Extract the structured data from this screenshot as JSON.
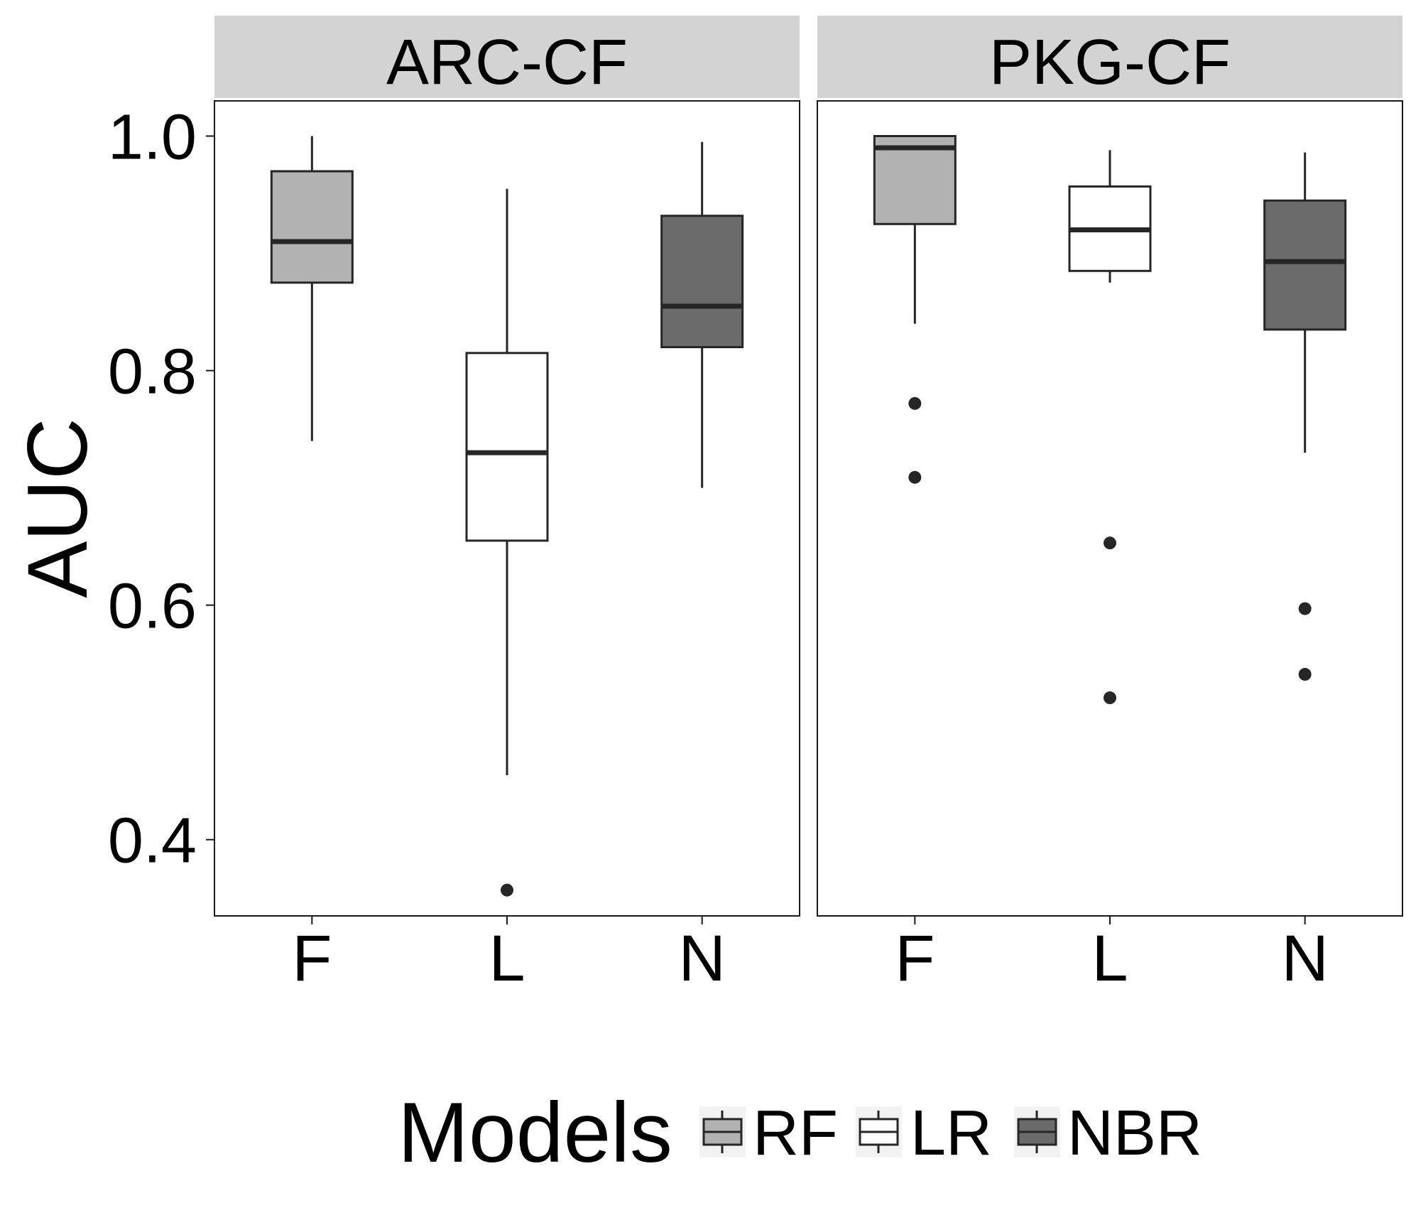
{
  "chart_data": {
    "type": "boxplot",
    "ylabel": "AUC",
    "ylim": [
      0.335,
      1.03
    ],
    "yticks": [
      {
        "value": 0.4,
        "label": "0.4"
      },
      {
        "value": 0.6,
        "label": "0.6"
      },
      {
        "value": 0.8,
        "label": "0.8"
      },
      {
        "value": 1.0,
        "label": "1.0"
      }
    ],
    "grid": false,
    "legend": {
      "title": "Models",
      "position": "bottom",
      "items": [
        {
          "key": "RF",
          "label": "RF",
          "color": "#b2b2b2"
        },
        {
          "key": "LR",
          "label": "LR",
          "color": "#ffffff"
        },
        {
          "key": "NBR",
          "label": "NBR",
          "color": "#6b6b6b"
        }
      ]
    },
    "panels": [
      {
        "title": "ARC-CF",
        "categories": [
          "F",
          "L",
          "N"
        ],
        "boxes": [
          {
            "category": "F",
            "model": "RF",
            "whisker_low": 0.74,
            "q1": 0.875,
            "median": 0.91,
            "q3": 0.97,
            "whisker_high": 1.0,
            "outliers": []
          },
          {
            "category": "L",
            "model": "LR",
            "whisker_low": 0.455,
            "q1": 0.655,
            "median": 0.73,
            "q3": 0.815,
            "whisker_high": 0.955,
            "outliers": [
              0.357
            ]
          },
          {
            "category": "N",
            "model": "NBR",
            "whisker_low": 0.7,
            "q1": 0.82,
            "median": 0.855,
            "q3": 0.932,
            "whisker_high": 0.995,
            "outliers": []
          }
        ]
      },
      {
        "title": "PKG-CF",
        "categories": [
          "F",
          "L",
          "N"
        ],
        "boxes": [
          {
            "category": "F",
            "model": "RF",
            "whisker_low": 0.84,
            "q1": 0.925,
            "median": 0.99,
            "q3": 1.0,
            "whisker_high": 1.0,
            "outliers": [
              0.772,
              0.709
            ]
          },
          {
            "category": "L",
            "model": "LR",
            "whisker_low": 0.875,
            "q1": 0.885,
            "median": 0.92,
            "q3": 0.957,
            "whisker_high": 0.988,
            "outliers": [
              0.653,
              0.521
            ]
          },
          {
            "category": "N",
            "model": "NBR",
            "whisker_low": 0.73,
            "q1": 0.835,
            "median": 0.893,
            "q3": 0.945,
            "whisker_high": 0.986,
            "outliers": [
              0.597,
              0.541
            ]
          }
        ]
      }
    ]
  }
}
